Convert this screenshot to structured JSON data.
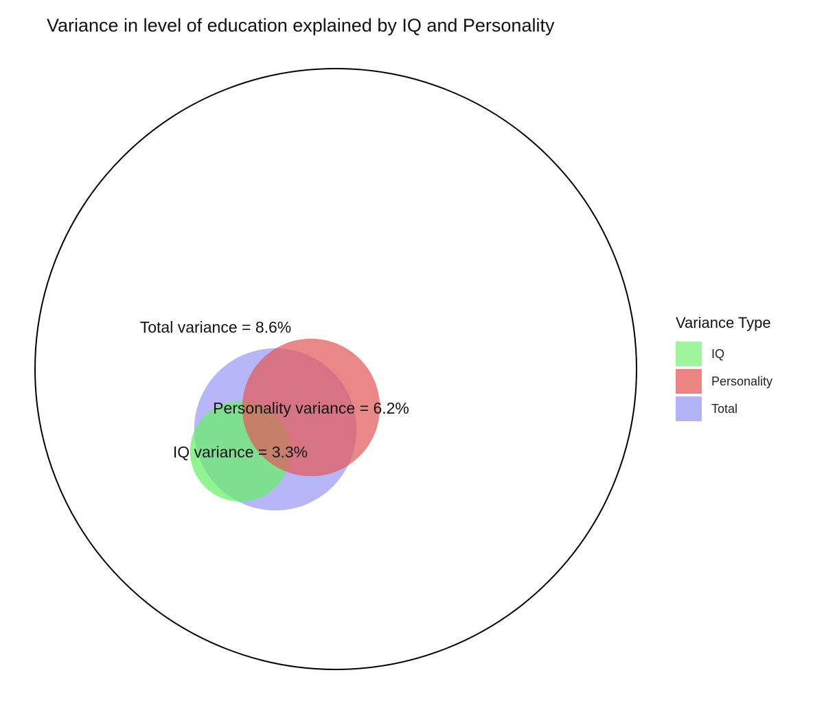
{
  "chart_data": {
    "type": "venn",
    "title": "Variance in level of education explained by IQ and Personality",
    "reference_circle": {
      "label": "",
      "value_percent": 100
    },
    "sets": [
      {
        "key": "total",
        "name": "Total",
        "value_percent": 8.6,
        "label": "Total variance = 8.6%",
        "color": "#9a9af5"
      },
      {
        "key": "personality",
        "name": "Personality",
        "value_percent": 6.2,
        "label": "Personality variance = 6.2%",
        "color": "#e25a5a"
      },
      {
        "key": "iq",
        "name": "IQ",
        "value_percent": 3.3,
        "label": "IQ variance = 3.3%",
        "color": "#66ee66"
      }
    ],
    "legend": {
      "title": "Variance Type",
      "position": "right",
      "items": [
        {
          "label": "IQ",
          "color": "#9ef59e"
        },
        {
          "label": "Personality",
          "color": "#ee8585"
        },
        {
          "label": "Total",
          "color": "#b2b2f7"
        }
      ]
    }
  }
}
